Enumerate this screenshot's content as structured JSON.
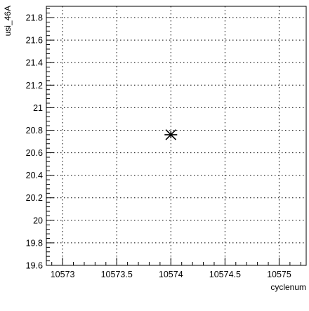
{
  "chart_data": {
    "type": "scatter",
    "title": "",
    "xlabel": "cyclenum",
    "ylabel": "usi_46A",
    "xlim": [
      10572.85,
      10575.25
    ],
    "ylim": [
      19.6,
      21.9
    ],
    "x_ticks": [
      10573,
      10573.5,
      10574,
      10574.5,
      10575
    ],
    "x_tick_labels": [
      "10573",
      "10573.5",
      "10574",
      "10574.5",
      "10575"
    ],
    "y_ticks": [
      19.6,
      19.8,
      20,
      20.2,
      20.4,
      20.6,
      20.8,
      21,
      21.2,
      21.4,
      21.6,
      21.8
    ],
    "y_tick_labels": [
      "19.6",
      "19.8",
      "20",
      "20.2",
      "20.4",
      "20.6",
      "20.8",
      "21",
      "21.2",
      "21.4",
      "21.6",
      "21.8"
    ],
    "grid": true,
    "grid_style": "dotted",
    "marker": "asterisk",
    "series": [
      {
        "points": [
          {
            "x": 10574,
            "y": 20.76
          }
        ]
      }
    ]
  }
}
